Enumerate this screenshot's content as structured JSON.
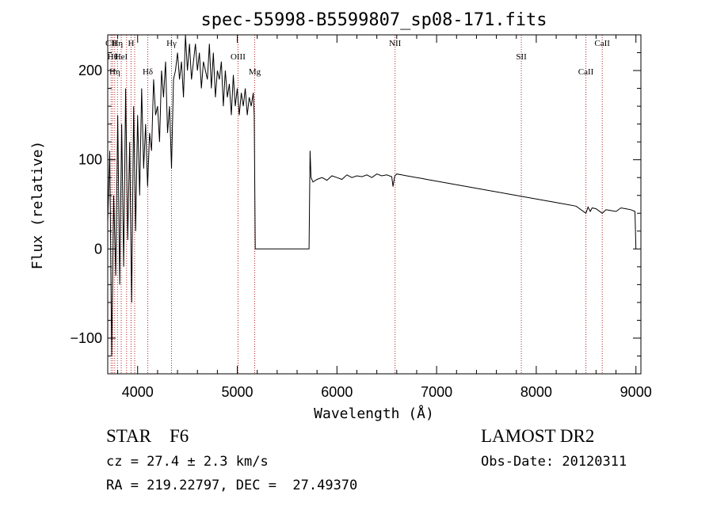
{
  "chart_data": {
    "type": "line",
    "title": "spec-55998-B5599807_sp08-171.fits",
    "xlabel": "Wavelength (Å)",
    "ylabel": "Flux (relative)",
    "xlim": [
      3700,
      9050
    ],
    "ylim": [
      -140,
      240
    ],
    "x_ticks": [
      4000,
      5000,
      6000,
      7000,
      8000,
      9000
    ],
    "y_ticks": [
      -100,
      0,
      100,
      200
    ],
    "x_tick_labels": [
      "4000",
      "5000",
      "6000",
      "7000",
      "8000",
      "9000"
    ],
    "y_tick_labels": [
      "−100",
      "0",
      "100",
      "200"
    ],
    "grid": false,
    "series": [
      {
        "color": "#000000",
        "x": [
          3700,
          3720,
          3740,
          3760,
          3780,
          3800,
          3820,
          3840,
          3860,
          3880,
          3900,
          3920,
          3940,
          3960,
          3980,
          4000,
          4020,
          4040,
          4060,
          4080,
          4100,
          4120,
          4140,
          4160,
          4180,
          4200,
          4220,
          4240,
          4260,
          4280,
          4300,
          4320,
          4340,
          4360,
          4380,
          4400,
          4420,
          4440,
          4460,
          4480,
          4500,
          4520,
          4540,
          4560,
          4580,
          4600,
          4620,
          4640,
          4660,
          4680,
          4700,
          4720,
          4740,
          4760,
          4780,
          4800,
          4820,
          4840,
          4860,
          4880,
          4900,
          4920,
          4940,
          4960,
          4980,
          5000,
          5020,
          5040,
          5060,
          5080,
          5100,
          5120,
          5140,
          5160,
          5170,
          5180,
          5200,
          5400,
          5600,
          5720,
          5730,
          5740,
          5760,
          5800,
          5850,
          5900,
          5950,
          6000,
          6050,
          6100,
          6150,
          6200,
          6250,
          6300,
          6350,
          6400,
          6450,
          6500,
          6550,
          6563,
          6580,
          6600,
          6650,
          6700,
          6750,
          6800,
          6850,
          6900,
          6950,
          7000,
          7100,
          7200,
          7300,
          7400,
          7500,
          7600,
          7700,
          7800,
          7900,
          8000,
          8100,
          8200,
          8300,
          8400,
          8498,
          8520,
          8542,
          8560,
          8600,
          8662,
          8700,
          8750,
          8800,
          8850,
          8900,
          8950,
          8990,
          9000
        ],
        "y": [
          30,
          110,
          -120,
          60,
          -30,
          150,
          -40,
          140,
          -20,
          180,
          10,
          120,
          -60,
          160,
          20,
          150,
          60,
          180,
          90,
          140,
          70,
          130,
          110,
          190,
          150,
          160,
          120,
          200,
          170,
          210,
          130,
          160,
          90,
          190,
          200,
          220,
          190,
          210,
          170,
          240,
          200,
          230,
          190,
          210,
          230,
          200,
          220,
          180,
          210,
          200,
          190,
          230,
          180,
          220,
          170,
          200,
          190,
          210,
          160,
          200,
          170,
          185,
          150,
          195,
          160,
          180,
          150,
          175,
          160,
          180,
          150,
          170,
          160,
          175,
          150,
          0,
          0,
          0,
          0,
          0,
          110,
          80,
          75,
          78,
          80,
          77,
          82,
          80,
          78,
          83,
          80,
          82,
          81,
          83,
          80,
          84,
          82,
          83,
          81,
          70,
          82,
          84,
          83,
          82,
          81,
          80,
          79,
          78,
          77,
          76,
          74,
          72,
          70,
          68,
          66,
          64,
          62,
          60,
          58,
          56,
          54,
          52,
          50,
          48,
          40,
          47,
          42,
          46,
          45,
          40,
          44,
          43,
          42,
          46,
          45,
          44,
          42,
          0
        ]
      }
    ],
    "lines": [
      {
        "x": 3734,
        "label": "CII"
      },
      {
        "x": 3750,
        "label": "Hθ"
      },
      {
        "x": 3770,
        "label": "Hη"
      },
      {
        "x": 3798,
        "label": "Hη"
      },
      {
        "x": 3835,
        "label": "HeI"
      },
      {
        "x": 3889,
        "label": ""
      },
      {
        "x": 3934,
        "label": "H"
      },
      {
        "x": 3970,
        "label": ""
      },
      {
        "x": 4102,
        "label": "Hδ"
      },
      {
        "x": 4340,
        "label": "Hγ"
      },
      {
        "x": 5007,
        "label": "OIII"
      },
      {
        "x": 5175,
        "label": "Mg"
      },
      {
        "x": 6583,
        "label": "NII"
      },
      {
        "x": 7850,
        "label": "SII"
      },
      {
        "x": 8498,
        "label": "CaII"
      },
      {
        "x": 8662,
        "label": "CaII"
      }
    ]
  },
  "info": {
    "class_line": "STAR    F6",
    "survey": "LAMOST DR2",
    "cz_line": "cz = 27.4 ± 2.3 km/s",
    "obs_date": "Obs-Date: 20120311",
    "coords": "RA = 219.22797, DEC =  27.49370"
  }
}
